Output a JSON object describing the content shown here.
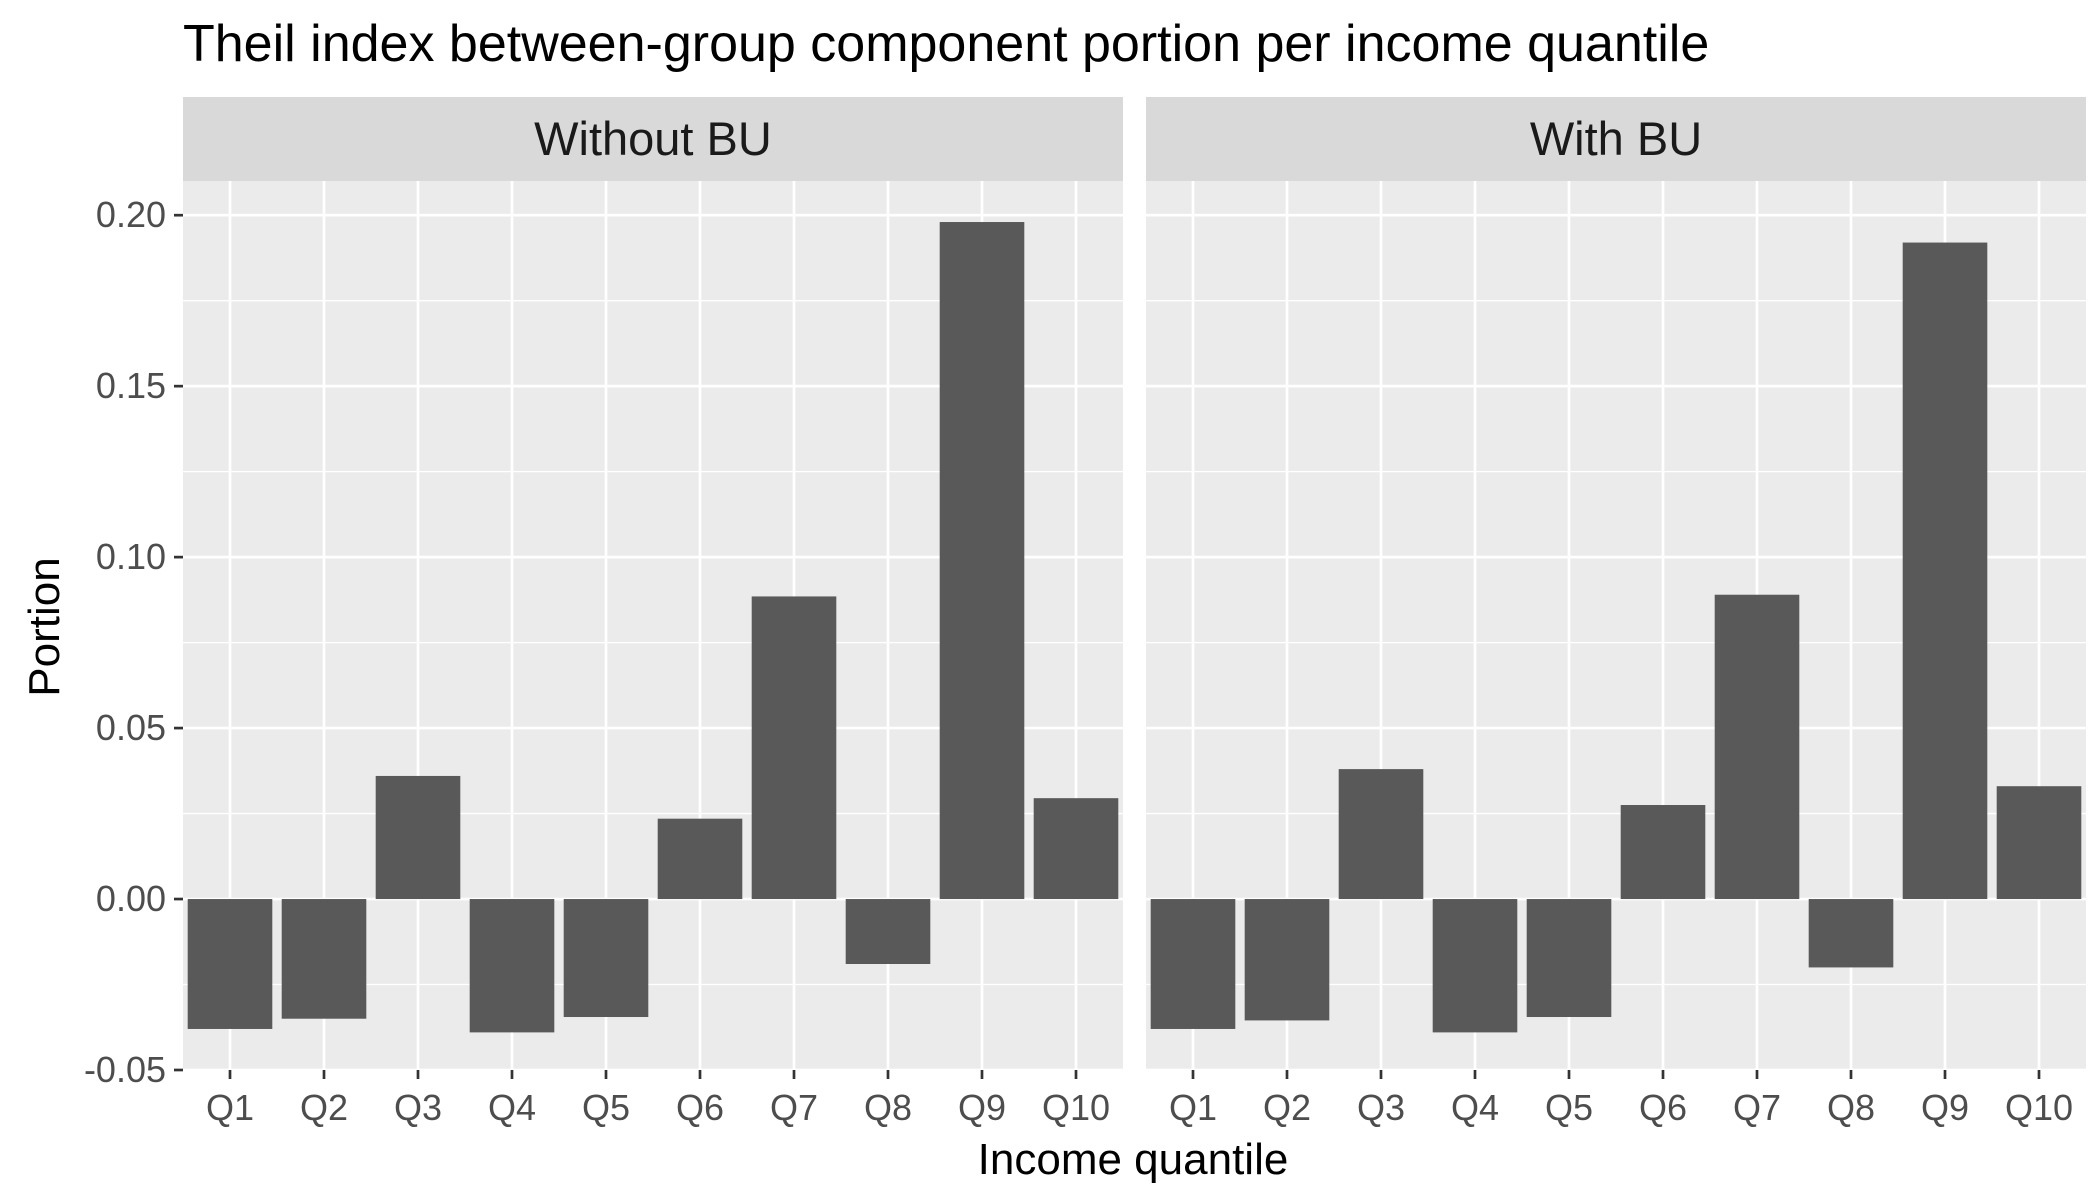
{
  "chart_data": {
    "type": "bar",
    "title": "Theil index between-group component portion per income quantile",
    "xlabel": "Income quantile",
    "ylabel": "Portion",
    "ylim": [
      -0.05,
      0.21
    ],
    "yticks": [
      -0.05,
      0.0,
      0.05,
      0.1,
      0.15,
      0.2
    ],
    "ytick_labels": [
      "-0.05",
      "0.00",
      "0.05",
      "0.10",
      "0.15",
      "0.20"
    ],
    "grid": true,
    "categories": [
      "Q1",
      "Q2",
      "Q3",
      "Q4",
      "Q5",
      "Q6",
      "Q7",
      "Q8",
      "Q9",
      "Q10"
    ],
    "bar_color": "#595959",
    "panel_background": "#ebebeb",
    "strip_background": "#d9d9d9",
    "grid_color": "#ffffff",
    "panels": [
      {
        "strip_label": "Without BU",
        "values": [
          -0.038,
          -0.035,
          0.036,
          -0.039,
          -0.0345,
          0.0235,
          0.0885,
          -0.019,
          0.198,
          0.0295
        ]
      },
      {
        "strip_label": "With BU",
        "values": [
          -0.038,
          -0.0355,
          0.038,
          -0.039,
          -0.0345,
          0.0275,
          0.089,
          -0.02,
          0.192,
          0.033
        ]
      }
    ]
  }
}
